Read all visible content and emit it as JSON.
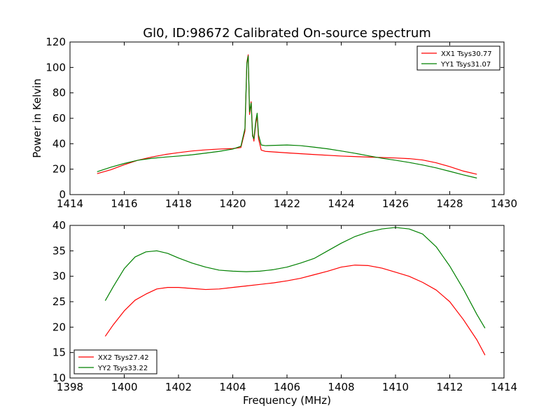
{
  "chart_data": [
    {
      "type": "line",
      "title": "Gl0, ID:98672 Calibrated On-source spectrum",
      "xlabel": "",
      "ylabel": "Power in Kelvin",
      "xlim": [
        1414,
        1430
      ],
      "ylim": [
        0,
        120
      ],
      "xticks": [
        "1414",
        "1416",
        "1418",
        "1420",
        "1422",
        "1424",
        "1426",
        "1428",
        "1430"
      ],
      "yticks": [
        "0",
        "20",
        "40",
        "60",
        "80",
        "100",
        "120"
      ],
      "grid": false,
      "legend_position": "top-right",
      "series": [
        {
          "name": "XX1 Tsys30.77",
          "color": "#ff0000",
          "points": [
            [
              1415.0,
              16.5
            ],
            [
              1415.5,
              19.5
            ],
            [
              1416.0,
              23.5
            ],
            [
              1416.5,
              27.0
            ],
            [
              1417.0,
              29.5
            ],
            [
              1417.5,
              31.5
            ],
            [
              1418.0,
              33.0
            ],
            [
              1418.5,
              34.3
            ],
            [
              1419.0,
              35.2
            ],
            [
              1419.5,
              35.8
            ],
            [
              1420.0,
              36.2
            ],
            [
              1420.3,
              37.0
            ],
            [
              1420.45,
              50.0
            ],
            [
              1420.52,
              104.0
            ],
            [
              1420.57,
              110.0
            ],
            [
              1420.62,
              63.0
            ],
            [
              1420.68,
              73.0
            ],
            [
              1420.73,
              48.0
            ],
            [
              1420.78,
              42.0
            ],
            [
              1420.85,
              56.0
            ],
            [
              1420.9,
              62.0
            ],
            [
              1420.95,
              44.0
            ],
            [
              1421.05,
              35.0
            ],
            [
              1421.2,
              34.0
            ],
            [
              1422.0,
              32.8
            ],
            [
              1423.0,
              31.5
            ],
            [
              1424.0,
              30.3
            ],
            [
              1425.0,
              29.5
            ],
            [
              1426.0,
              28.8
            ],
            [
              1426.5,
              28.3
            ],
            [
              1427.0,
              27.2
            ],
            [
              1427.5,
              25.0
            ],
            [
              1428.0,
              22.0
            ],
            [
              1428.5,
              18.5
            ],
            [
              1429.0,
              16.0
            ]
          ]
        },
        {
          "name": "YY1 Tsys31.07",
          "color": "#008000",
          "points": [
            [
              1415.0,
              18.0
            ],
            [
              1415.5,
              21.5
            ],
            [
              1416.0,
              24.5
            ],
            [
              1416.5,
              27.0
            ],
            [
              1417.0,
              28.5
            ],
            [
              1417.5,
              29.5
            ],
            [
              1418.0,
              30.3
            ],
            [
              1418.5,
              31.3
            ],
            [
              1419.0,
              32.6
            ],
            [
              1419.5,
              34.0
            ],
            [
              1420.0,
              35.8
            ],
            [
              1420.3,
              38.0
            ],
            [
              1420.45,
              52.0
            ],
            [
              1420.52,
              103.0
            ],
            [
              1420.57,
              109.0
            ],
            [
              1420.62,
              65.0
            ],
            [
              1420.68,
              72.0
            ],
            [
              1420.73,
              46.0
            ],
            [
              1420.78,
              44.0
            ],
            [
              1420.85,
              58.0
            ],
            [
              1420.9,
              64.0
            ],
            [
              1420.95,
              47.0
            ],
            [
              1421.05,
              39.0
            ],
            [
              1421.2,
              38.5
            ],
            [
              1422.0,
              39.0
            ],
            [
              1422.5,
              38.5
            ],
            [
              1423.0,
              37.3
            ],
            [
              1423.5,
              36.0
            ],
            [
              1424.0,
              34.3
            ],
            [
              1424.5,
              32.5
            ],
            [
              1425.0,
              30.5
            ],
            [
              1425.5,
              28.6
            ],
            [
              1426.0,
              27.0
            ],
            [
              1426.5,
              25.3
            ],
            [
              1427.0,
              23.3
            ],
            [
              1427.5,
              21.0
            ],
            [
              1428.0,
              18.3
            ],
            [
              1428.5,
              15.5
            ],
            [
              1429.0,
              13.0
            ]
          ]
        }
      ]
    },
    {
      "type": "line",
      "title": "",
      "xlabel": "Frequency (MHz)",
      "ylabel": "",
      "xlim": [
        1398,
        1414
      ],
      "ylim": [
        10,
        40
      ],
      "xticks": [
        "1398",
        "1400",
        "1402",
        "1404",
        "1406",
        "1408",
        "1410",
        "1412",
        "1414"
      ],
      "yticks": [
        "10",
        "15",
        "20",
        "25",
        "30",
        "35",
        "40"
      ],
      "grid": false,
      "legend_position": "bottom-left",
      "series": [
        {
          "name": "XX2 Tsys27.42",
          "color": "#ff0000",
          "points": [
            [
              1399.3,
              18.2
            ],
            [
              1399.6,
              20.5
            ],
            [
              1400.0,
              23.2
            ],
            [
              1400.4,
              25.3
            ],
            [
              1400.8,
              26.5
            ],
            [
              1401.2,
              27.5
            ],
            [
              1401.6,
              27.8
            ],
            [
              1402.0,
              27.8
            ],
            [
              1402.5,
              27.6
            ],
            [
              1403.0,
              27.4
            ],
            [
              1403.5,
              27.5
            ],
            [
              1404.0,
              27.8
            ],
            [
              1404.5,
              28.1
            ],
            [
              1405.0,
              28.4
            ],
            [
              1405.5,
              28.7
            ],
            [
              1406.0,
              29.1
            ],
            [
              1406.5,
              29.6
            ],
            [
              1407.0,
              30.3
            ],
            [
              1407.5,
              31.0
            ],
            [
              1408.0,
              31.8
            ],
            [
              1408.5,
              32.2
            ],
            [
              1409.0,
              32.1
            ],
            [
              1409.5,
              31.6
            ],
            [
              1410.0,
              30.8
            ],
            [
              1410.5,
              30.0
            ],
            [
              1411.0,
              28.8
            ],
            [
              1411.5,
              27.3
            ],
            [
              1412.0,
              25.0
            ],
            [
              1412.5,
              21.5
            ],
            [
              1413.0,
              17.5
            ],
            [
              1413.3,
              14.5
            ]
          ]
        },
        {
          "name": "YY2 Tsys33.22",
          "color": "#008000",
          "points": [
            [
              1399.3,
              25.2
            ],
            [
              1399.6,
              28.0
            ],
            [
              1400.0,
              31.5
            ],
            [
              1400.4,
              33.8
            ],
            [
              1400.8,
              34.8
            ],
            [
              1401.2,
              35.0
            ],
            [
              1401.6,
              34.5
            ],
            [
              1402.0,
              33.6
            ],
            [
              1402.5,
              32.6
            ],
            [
              1403.0,
              31.8
            ],
            [
              1403.5,
              31.2
            ],
            [
              1404.0,
              31.0
            ],
            [
              1404.5,
              30.9
            ],
            [
              1405.0,
              31.0
            ],
            [
              1405.5,
              31.3
            ],
            [
              1406.0,
              31.8
            ],
            [
              1406.5,
              32.6
            ],
            [
              1407.0,
              33.5
            ],
            [
              1407.5,
              35.0
            ],
            [
              1408.0,
              36.5
            ],
            [
              1408.5,
              37.8
            ],
            [
              1409.0,
              38.7
            ],
            [
              1409.5,
              39.3
            ],
            [
              1410.0,
              39.6
            ],
            [
              1410.5,
              39.3
            ],
            [
              1411.0,
              38.3
            ],
            [
              1411.5,
              35.8
            ],
            [
              1412.0,
              32.0
            ],
            [
              1412.5,
              27.5
            ],
            [
              1413.0,
              22.5
            ],
            [
              1413.3,
              19.8
            ]
          ]
        }
      ]
    }
  ]
}
